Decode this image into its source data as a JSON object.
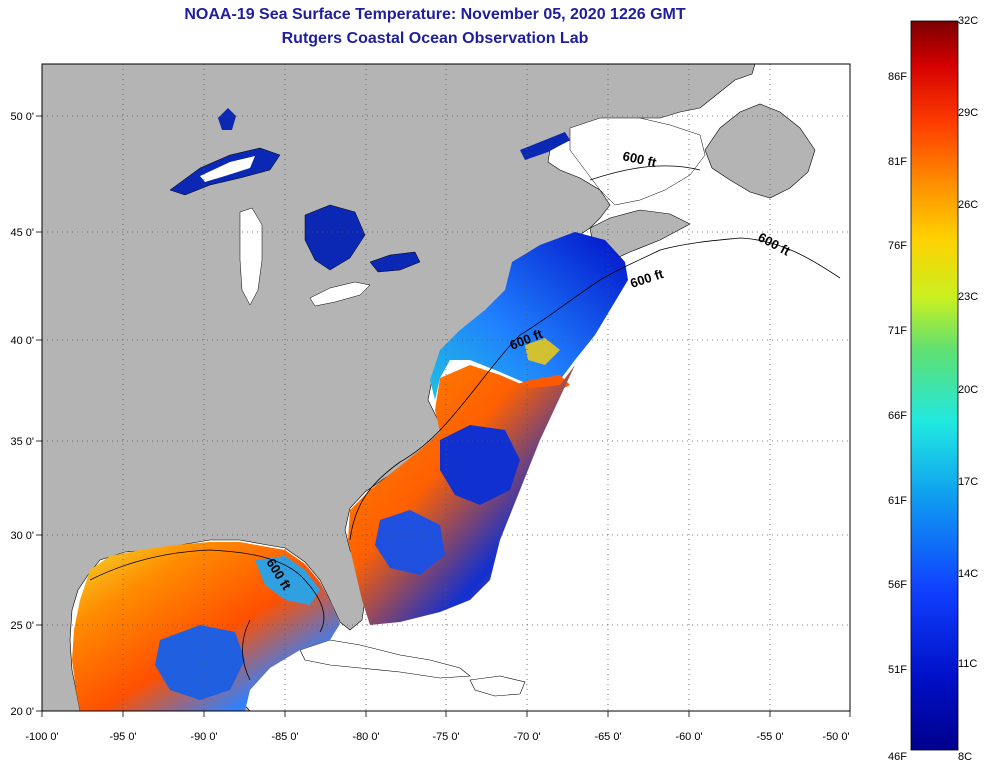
{
  "title": {
    "line1": "NOAA-19 Sea Surface Temperature:  November 05, 2020 1226 GMT",
    "line2": "Rutgers Coastal Ocean Observation Lab"
  },
  "map": {
    "longitude_labels": [
      "-100 0'",
      "-95 0'",
      "-90 0'",
      "-85 0'",
      "-80 0'",
      "-75 0'",
      "-70 0'",
      "-65 0'",
      "-60 0'",
      "-55 0'",
      "-50 0'"
    ],
    "latitude_labels": [
      "50 0'",
      "45 0'",
      "40 0'",
      "35 0'",
      "30 0'",
      "25 0'",
      "20 0'"
    ],
    "contour_label": "600 ft",
    "colors": {
      "land": "#b4b4b4",
      "ocean_nodata": "#ffffff",
      "grid": "#555555"
    }
  },
  "colorbar": {
    "celsius_labels": [
      "32C",
      "29C",
      "26C",
      "23C",
      "20C",
      "17C",
      "14C",
      "11C",
      "8C"
    ],
    "fahrenheit_labels": [
      "86F",
      "81F",
      "76F",
      "71F",
      "66F",
      "61F",
      "56F",
      "51F",
      "46F"
    ],
    "colors": [
      "#7a0000",
      "#d40000",
      "#ff3c00",
      "#ff8c00",
      "#ffd200",
      "#c8f020",
      "#60e070",
      "#20e8e0",
      "#10a0f0",
      "#1040ff",
      "#0010c8",
      "#00008c"
    ]
  }
}
